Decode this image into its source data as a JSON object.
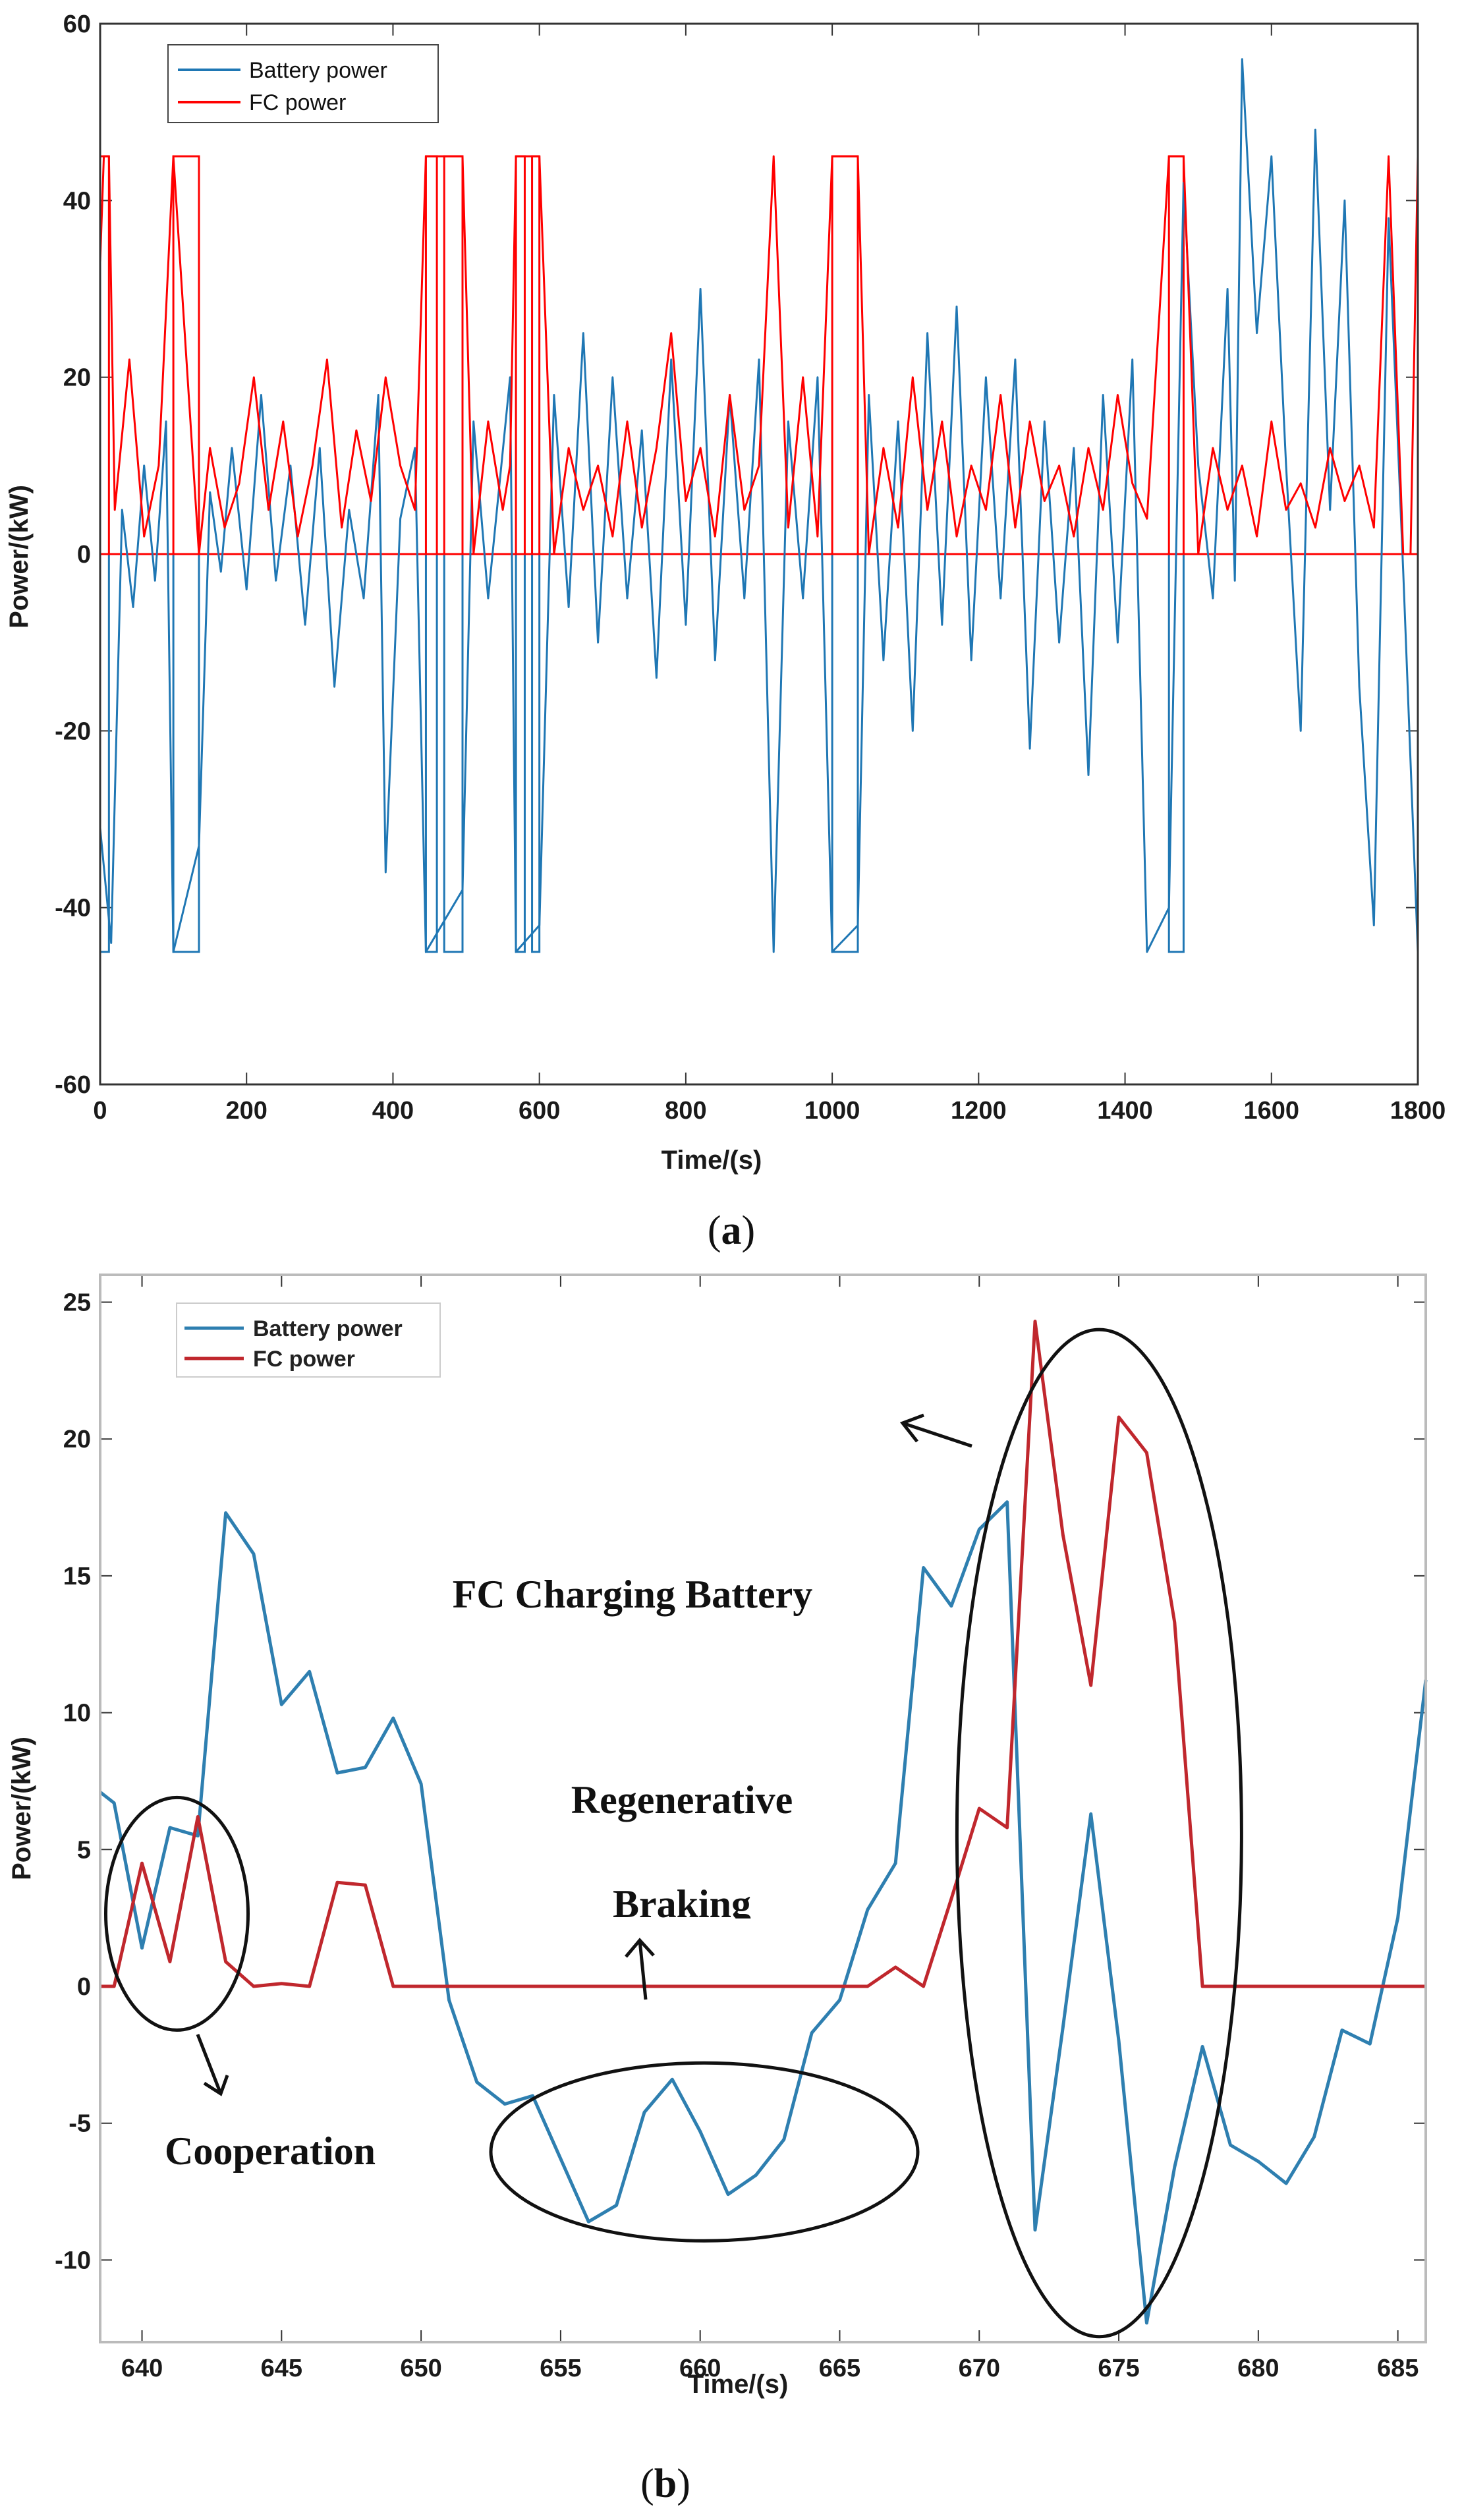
{
  "chart_data": [
    {
      "panel": "(a)",
      "panel_letter": "a",
      "type": "line",
      "xlabel": "Time/(s)",
      "ylabel": "Power/(kW)",
      "xlim": [
        0,
        1800
      ],
      "ylim": [
        -60,
        60
      ],
      "xticks": [
        0,
        200,
        400,
        600,
        800,
        1000,
        1200,
        1400,
        1600,
        1800
      ],
      "yticks": [
        -60,
        -40,
        -20,
        0,
        20,
        40,
        60
      ],
      "legend": {
        "position": "top-left",
        "entries": [
          "Battery power",
          "FC power"
        ]
      },
      "colors": {
        "battery": "#1f77b4",
        "fc": "#ff0000"
      },
      "fc_saturation_kw": 45,
      "full_power_windows": [
        [
          0,
          12
        ],
        [
          100,
          135
        ],
        [
          445,
          460
        ],
        [
          470,
          495
        ],
        [
          568,
          580
        ],
        [
          590,
          600
        ],
        [
          1000,
          1035
        ],
        [
          1460,
          1480
        ]
      ],
      "series": [
        {
          "name": "Battery power",
          "x": [
            0,
            15,
            30,
            45,
            60,
            75,
            90,
            100,
            135,
            150,
            165,
            180,
            200,
            220,
            240,
            260,
            280,
            300,
            320,
            340,
            360,
            380,
            390,
            410,
            430,
            445,
            495,
            510,
            530,
            560,
            568,
            600,
            620,
            640,
            660,
            680,
            700,
            720,
            740,
            760,
            780,
            800,
            820,
            840,
            860,
            880,
            900,
            920,
            940,
            960,
            980,
            1000,
            1035,
            1050,
            1070,
            1090,
            1110,
            1130,
            1150,
            1170,
            1190,
            1210,
            1230,
            1250,
            1270,
            1290,
            1310,
            1330,
            1350,
            1370,
            1390,
            1410,
            1430,
            1460,
            1480,
            1500,
            1520,
            1540,
            1550,
            1560,
            1580,
            1600,
            1620,
            1640,
            1660,
            1680,
            1700,
            1720,
            1740,
            1760,
            1780,
            1800
          ],
          "values": [
            -31,
            -44,
            5,
            -6,
            10,
            -3,
            15,
            -45,
            -33,
            7,
            -2,
            12,
            -4,
            18,
            -3,
            10,
            -8,
            12,
            -15,
            5,
            -5,
            18,
            -36,
            4,
            12,
            -45,
            -38,
            15,
            -5,
            20,
            -45,
            -42,
            18,
            -6,
            25,
            -10,
            20,
            -5,
            14,
            -14,
            22,
            -8,
            30,
            -12,
            18,
            -5,
            22,
            -45,
            15,
            -5,
            20,
            -45,
            -42,
            18,
            -12,
            15,
            -20,
            25,
            -8,
            28,
            -12,
            20,
            -5,
            22,
            -22,
            15,
            -10,
            12,
            -25,
            18,
            -10,
            22,
            -45,
            -40,
            42,
            10,
            -5,
            30,
            -3,
            56,
            25,
            45,
            10,
            -20,
            48,
            5,
            40,
            -15,
            -42,
            38,
            -2,
            -45
          ]
        },
        {
          "name": "FC power",
          "x": [
            0,
            5,
            12,
            20,
            40,
            60,
            80,
            100,
            135,
            150,
            170,
            190,
            210,
            230,
            250,
            270,
            290,
            310,
            330,
            350,
            370,
            390,
            410,
            430,
            445,
            495,
            510,
            530,
            550,
            560,
            568,
            600,
            620,
            640,
            660,
            680,
            700,
            720,
            740,
            760,
            780,
            800,
            820,
            840,
            860,
            880,
            900,
            920,
            940,
            960,
            980,
            1000,
            1035,
            1050,
            1070,
            1090,
            1110,
            1130,
            1150,
            1170,
            1190,
            1210,
            1230,
            1250,
            1270,
            1290,
            1310,
            1330,
            1350,
            1370,
            1390,
            1410,
            1430,
            1460,
            1480,
            1500,
            1520,
            1540,
            1560,
            1580,
            1600,
            1620,
            1640,
            1660,
            1680,
            1700,
            1720,
            1740,
            1760,
            1780,
            1790,
            1800
          ],
          "values": [
            33,
            45,
            45,
            5,
            22,
            2,
            10,
            45,
            0,
            12,
            3,
            8,
            20,
            5,
            15,
            2,
            10,
            22,
            3,
            14,
            6,
            20,
            10,
            5,
            45,
            45,
            0,
            15,
            5,
            10,
            45,
            45,
            0,
            12,
            5,
            10,
            2,
            15,
            3,
            12,
            25,
            6,
            12,
            2,
            18,
            5,
            10,
            45,
            3,
            20,
            2,
            45,
            45,
            0,
            12,
            3,
            20,
            5,
            15,
            2,
            10,
            5,
            18,
            3,
            15,
            6,
            10,
            2,
            12,
            5,
            18,
            8,
            4,
            45,
            45,
            0,
            12,
            5,
            10,
            2,
            15,
            5,
            8,
            3,
            12,
            6,
            10,
            3,
            45,
            0,
            0,
            45
          ]
        }
      ]
    },
    {
      "panel": "(b)",
      "panel_letter": "b",
      "type": "line",
      "xlabel": "Time/(s)",
      "ylabel": "Power/(kW)",
      "xlim": [
        638.5,
        686
      ],
      "ylim": [
        -13,
        26
      ],
      "xticks": [
        640,
        645,
        650,
        655,
        660,
        665,
        670,
        675,
        680,
        685
      ],
      "yticks": [
        -10,
        -5,
        0,
        5,
        10,
        15,
        20,
        25
      ],
      "legend": {
        "position": "top-left",
        "entries": [
          "Battery power",
          "FC power"
        ]
      },
      "colors": {
        "battery": "#2e7fb0",
        "fc": "#c0272d",
        "annotation": "#111111"
      },
      "annotations": {
        "fc_charging": "FC Charging Battery",
        "regen_line1": "Regenerative",
        "regen_line2": "Braking",
        "cooperation": "Cooperation"
      },
      "annotation_regions": {
        "cooperation": {
          "x": [
            638.7,
            643.8
          ],
          "y": [
            -1.6,
            6.9
          ]
        },
        "regenerative_braking": {
          "x": [
            652.5,
            667.8
          ],
          "y": [
            -9.3,
            -2.8
          ]
        },
        "fc_charging": {
          "x": [
            669.2,
            679.4
          ],
          "y": [
            -12.8,
            24
          ]
        }
      },
      "series": [
        {
          "name": "Battery power",
          "x": [
            638.5,
            639,
            640,
            641,
            642,
            643,
            644,
            645,
            646,
            647,
            648,
            649,
            650,
            651,
            652,
            653,
            654,
            655,
            656,
            657,
            658,
            659,
            660,
            661,
            662,
            663,
            664,
            665,
            666,
            667,
            668,
            669,
            670,
            671,
            672,
            673,
            674,
            675,
            676,
            677,
            678,
            679,
            680,
            681,
            682,
            683,
            684,
            685,
            686
          ],
          "values": [
            7.1,
            6.7,
            1.4,
            5.8,
            5.5,
            17.3,
            15.8,
            10.3,
            11.5,
            7.8,
            8.0,
            9.8,
            7.4,
            -0.5,
            -3.5,
            -4.3,
            -4.0,
            -6.3,
            -8.6,
            -8.0,
            -4.6,
            -3.4,
            -5.3,
            -7.6,
            -6.9,
            -5.6,
            -1.7,
            -0.5,
            2.8,
            4.5,
            15.3,
            13.9,
            16.7,
            17.7,
            -8.9,
            -1.5,
            6.3,
            -2.0,
            -12.3,
            -6.6,
            -2.2,
            -5.8,
            -6.4,
            -7.2,
            -5.5,
            -1.6,
            -2.1,
            2.5,
            11.2
          ]
        },
        {
          "name": "FC power",
          "x": [
            638.5,
            639,
            640,
            641,
            642,
            643,
            644,
            645,
            646,
            647,
            648,
            649,
            650,
            651,
            652,
            653,
            654,
            655,
            656,
            657,
            658,
            659,
            660,
            661,
            662,
            663,
            664,
            665,
            666,
            667,
            668,
            669,
            670,
            671,
            672,
            673,
            674,
            675,
            676,
            677,
            678,
            679,
            680,
            681,
            682,
            683,
            684,
            685,
            686
          ],
          "values": [
            0,
            0,
            4.5,
            0.9,
            6.2,
            0.9,
            0,
            0.1,
            0,
            3.8,
            3.7,
            0,
            0,
            0,
            0,
            0,
            0,
            0,
            0,
            0,
            0,
            0,
            0,
            0,
            0,
            0,
            0,
            0,
            0,
            0.7,
            0,
            3.2,
            6.5,
            5.8,
            24.3,
            16.5,
            11.0,
            20.8,
            19.5,
            13.3,
            0,
            0,
            0,
            0,
            0,
            0,
            0,
            0,
            0
          ]
        }
      ]
    }
  ]
}
